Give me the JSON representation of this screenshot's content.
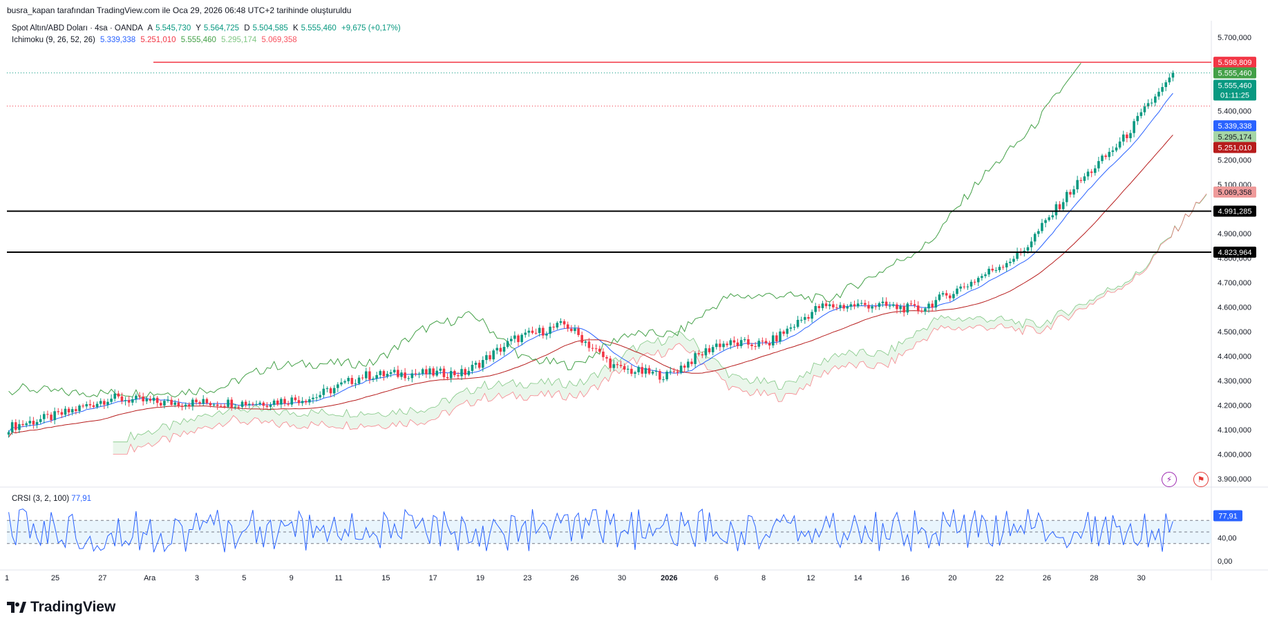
{
  "header": {
    "created_by": "busra_kapan tarafından TradingView.com ile Oca 29, 2026 06:48 UTC+2 tarihinde oluşturuldu"
  },
  "symbol": {
    "name": "Spot Altın/ABD Doları · 4sa · OANDA",
    "open_label": "A",
    "open": "5.545,730",
    "high_label": "Y",
    "high": "5.564,725",
    "low_label": "D",
    "low": "5.504,585",
    "close_label": "K",
    "close": "5.555,460",
    "change": "+9,675 (+0,17%)"
  },
  "ichimoku": {
    "name": "Ichimoku (9, 26, 52, 26)",
    "conversion": "5.339,338",
    "base": "5.251,010",
    "lagging": "5.555,460",
    "lead_a": "5.295,174",
    "lead_b": "5.069,358"
  },
  "rsi": {
    "name": "CRSI (3, 2, 100)",
    "value": "77,91"
  },
  "price_tags": {
    "alert_line": "5.598,809",
    "last_a": "5.555,460",
    "last_b": "5.555,460",
    "countdown": "01:11:25",
    "conversion": "5.339,338",
    "lead_a": "5.295,174",
    "base": "5.251,010",
    "lead_b": "5.069,358",
    "level_1": "4.991,285",
    "level_2": "4.823,964",
    "rsi": "77,91"
  },
  "colors": {
    "up": "#089981",
    "down": "#f23645",
    "conversion": "#2962ff",
    "base": "#b71c1c",
    "lagging": "#43a047",
    "cloud_up": "#e8f5e9",
    "cloud_down": "#ffebee",
    "rsi_line": "#2962ff"
  },
  "branding": {
    "logo_text": "TradingView"
  },
  "icons": [
    "lightning-icon",
    "flag-icon",
    "tradingview-logo-icon"
  ],
  "chart_data": {
    "type": "candlestick",
    "title": "Spot Altın/ABD Doları · 4sa · OANDA",
    "y_axis": {
      "ticks": [
        "5.700,000",
        "5.400,000",
        "5.200,000",
        "5.100,000",
        "4.900,000",
        "4.800,000",
        "4.700,000",
        "4.600,000",
        "4.500,000",
        "4.400,000",
        "4.300,000",
        "4.200,000",
        "4.100,000",
        "4.000,000",
        "3.900,000"
      ],
      "ylim": [
        3880,
        5740
      ]
    },
    "x_axis": {
      "ticks": [
        "1",
        "25",
        "27",
        "Ara",
        "3",
        "5",
        "9",
        "11",
        "15",
        "17",
        "19",
        "23",
        "26",
        "30",
        "2026",
        "6",
        "8",
        "12",
        "14",
        "16",
        "20",
        "22",
        "26",
        "28",
        "30"
      ],
      "bold_ticks": [
        "2026"
      ]
    },
    "horizontal_levels": [
      {
        "value": 5598.809,
        "style": "red-solid"
      },
      {
        "value": 4991.285,
        "style": "black-solid"
      },
      {
        "value": 4823.964,
        "style": "black-solid"
      }
    ],
    "close_series_approx": [
      {
        "label": "25",
        "close": 4110
      },
      {
        "label": "27",
        "close": 4160
      },
      {
        "label": "Ara",
        "close": 4230
      },
      {
        "label": "3",
        "close": 4210
      },
      {
        "label": "5",
        "close": 4210
      },
      {
        "label": "9",
        "close": 4210
      },
      {
        "label": "11",
        "close": 4230
      },
      {
        "label": "15",
        "close": 4320
      },
      {
        "label": "17",
        "close": 4330
      },
      {
        "label": "19",
        "close": 4330
      },
      {
        "label": "23",
        "close": 4470
      },
      {
        "label": "26",
        "close": 4530
      },
      {
        "label": "30",
        "close": 4350
      },
      {
        "label": "2026",
        "close": 4320
      },
      {
        "label": "6",
        "close": 4450
      },
      {
        "label": "8",
        "close": 4450
      },
      {
        "label": "12",
        "close": 4600
      },
      {
        "label": "14",
        "close": 4610
      },
      {
        "label": "16",
        "close": 4590
      },
      {
        "label": "20",
        "close": 4700
      },
      {
        "label": "22",
        "close": 4820
      },
      {
        "label": "26",
        "close": 5080
      },
      {
        "label": "28",
        "close": 5280
      },
      {
        "label": "29",
        "close": 5555.46
      }
    ],
    "rsi_axis": {
      "ticks": [
        "40,00",
        "0,00"
      ],
      "bands": [
        30,
        70
      ]
    }
  }
}
